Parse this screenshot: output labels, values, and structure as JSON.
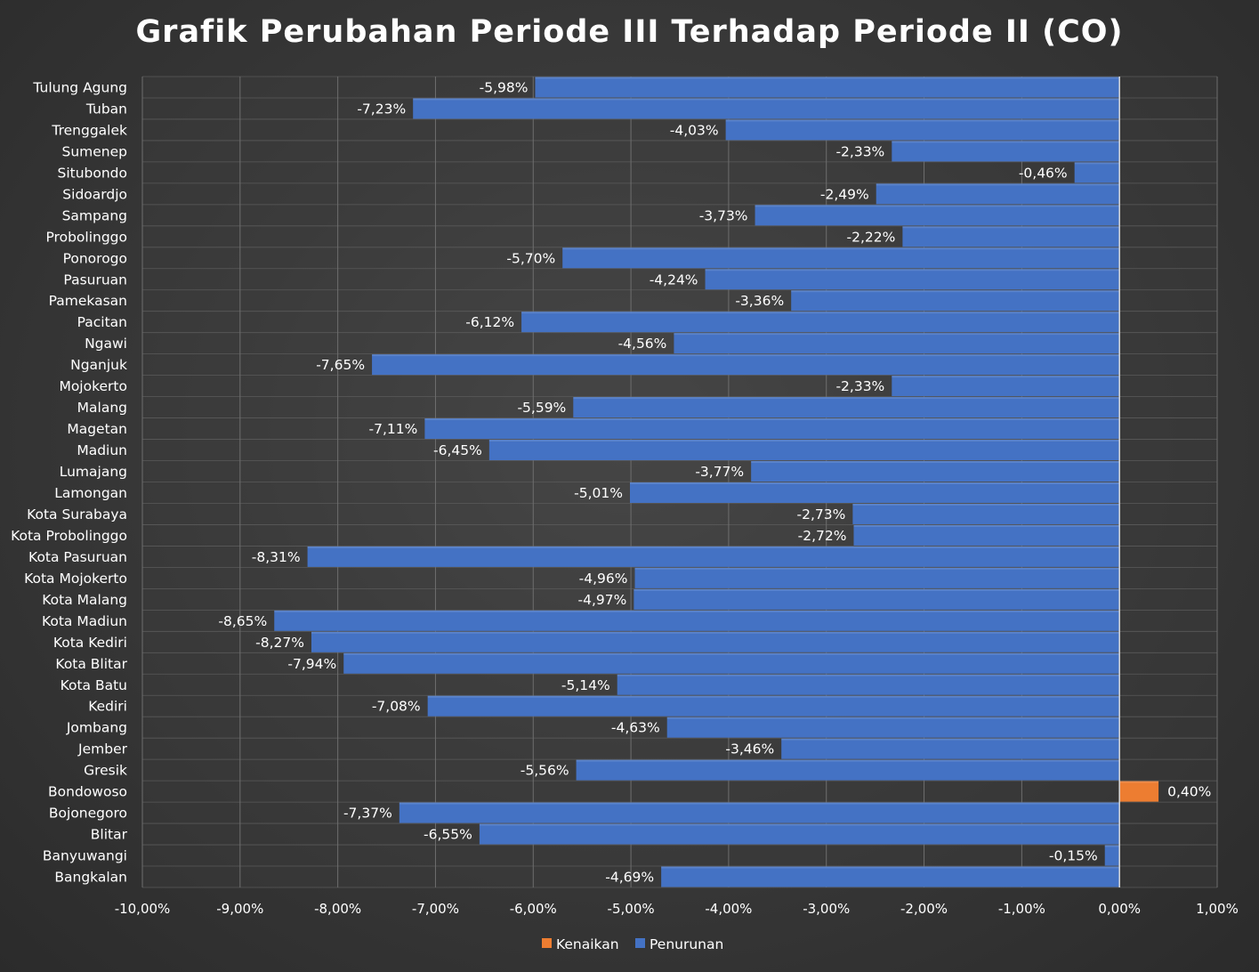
{
  "chart_data": {
    "type": "bar",
    "orientation": "horizontal",
    "title": "Grafik Perubahan Periode III Terhadap Periode II (CO)",
    "xlabel": "",
    "ylabel": "",
    "xlim": [
      -10,
      1
    ],
    "x_ticks": [
      -10,
      -9,
      -8,
      -7,
      -6,
      -5,
      -4,
      -3,
      -2,
      -1,
      0,
      1
    ],
    "x_tick_labels": [
      "-10,00%",
      "-9,00%",
      "-8,00%",
      "-7,00%",
      "-6,00%",
      "-5,00%",
      "-4,00%",
      "-3,00%",
      "-2,00%",
      "-1,00%",
      "0,00%",
      "1,00%"
    ],
    "grid": true,
    "legend_position": "bottom",
    "colors": {
      "Kenaikan": "#ed7d31",
      "Penurunan": "#4472c4"
    },
    "legend": [
      "Kenaikan",
      "Penurunan"
    ],
    "categories": [
      "Tulung Agung",
      "Tuban",
      "Trenggalek",
      "Sumenep",
      "Situbondo",
      "Sidoardjo",
      "Sampang",
      "Probolinggo",
      "Ponorogo",
      "Pasuruan",
      "Pamekasan",
      "Pacitan",
      "Ngawi",
      "Nganjuk",
      "Mojokerto",
      "Malang",
      "Magetan",
      "Madiun",
      "Lumajang",
      "Lamongan",
      "Kota Surabaya",
      "Kota Probolinggo",
      "Kota Pasuruan",
      "Kota Mojokerto",
      "Kota Malang",
      "Kota Madiun",
      "Kota Kediri",
      "Kota Blitar",
      "Kota Batu",
      "Kediri",
      "Jombang",
      "Jember",
      "Gresik",
      "Bondowoso",
      "Bojonegoro",
      "Blitar",
      "Banyuwangi",
      "Bangkalan"
    ],
    "values": [
      -5.98,
      -7.23,
      -4.03,
      -2.33,
      -0.46,
      -2.49,
      -3.73,
      -2.22,
      -5.7,
      -4.24,
      -3.36,
      -6.12,
      -4.56,
      -7.65,
      -2.33,
      -5.59,
      -7.11,
      -6.45,
      -3.77,
      -5.01,
      -2.73,
      -2.72,
      -8.31,
      -4.96,
      -4.97,
      -8.65,
      -8.27,
      -7.94,
      -5.14,
      -7.08,
      -4.63,
      -3.46,
      -5.56,
      0.4,
      -7.37,
      -6.55,
      -0.15,
      -4.69
    ],
    "data_labels": [
      "-5,98%",
      "-7,23%",
      "-4,03%",
      "-2,33%",
      "-0,46%",
      "-2,49%",
      "-3,73%",
      "-2,22%",
      "-5,70%",
      "-4,24%",
      "-3,36%",
      "-6,12%",
      "-4,56%",
      "-7,65%",
      "-2,33%",
      "-5,59%",
      "-7,11%",
      "-6,45%",
      "-3,77%",
      "-5,01%",
      "-2,73%",
      "-2,72%",
      "-8,31%",
      "-4,96%",
      "-4,97%",
      "-8,65%",
      "-8,27%",
      "-7,94%",
      "-5,14%",
      "-7,08%",
      "-4,63%",
      "-3,46%",
      "-5,56%",
      "0,40%",
      "-7,37%",
      "-6,55%",
      "-0,15%",
      "-4,69%"
    ]
  }
}
